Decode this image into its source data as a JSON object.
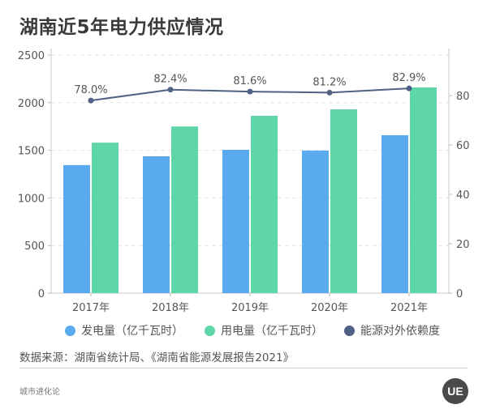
{
  "title": "湖南近5年电力供应情况",
  "chart_data": {
    "type": "bar",
    "title": "湖南近5年电力供应情况",
    "categories": [
      "2017年",
      "2018年",
      "2019年",
      "2020年",
      "2021年"
    ],
    "series": [
      {
        "name": "发电量（亿千瓦时）",
        "type": "bar",
        "axis": "left",
        "color": "#5aaaf0",
        "values": [
          1345,
          1437,
          1505,
          1497,
          1658
        ]
      },
      {
        "name": "用电量（亿千瓦时）",
        "type": "bar",
        "axis": "left",
        "color": "#5fd6a8",
        "values": [
          1580,
          1750,
          1862,
          1930,
          2160
        ]
      },
      {
        "name": "能源对外依赖度",
        "type": "line",
        "axis": "right",
        "color": "#4f6184",
        "values": [
          78.0,
          82.4,
          81.6,
          81.2,
          82.9
        ],
        "labels": [
          "78.0%",
          "82.4%",
          "81.6%",
          "81.2%",
          "82.9%"
        ]
      }
    ],
    "y_left": {
      "ticks": [
        "0",
        "500",
        "1000",
        "1500",
        "2000",
        "2500"
      ],
      "range": [
        0,
        2500
      ]
    },
    "y_right": {
      "ticks": [
        "0",
        "20",
        "40",
        "60",
        "80"
      ],
      "range": [
        0,
        96.4
      ]
    },
    "grid": true,
    "legend_position": "bottom"
  },
  "legend": [
    "发电量（亿千瓦时）",
    "用电量（亿千瓦时）",
    "能源对外依赖度"
  ],
  "source": "数据来源：湖南省统计局、《湖南省能源发展报告2021》",
  "brand": "城市进化论",
  "logo_text": "UE"
}
